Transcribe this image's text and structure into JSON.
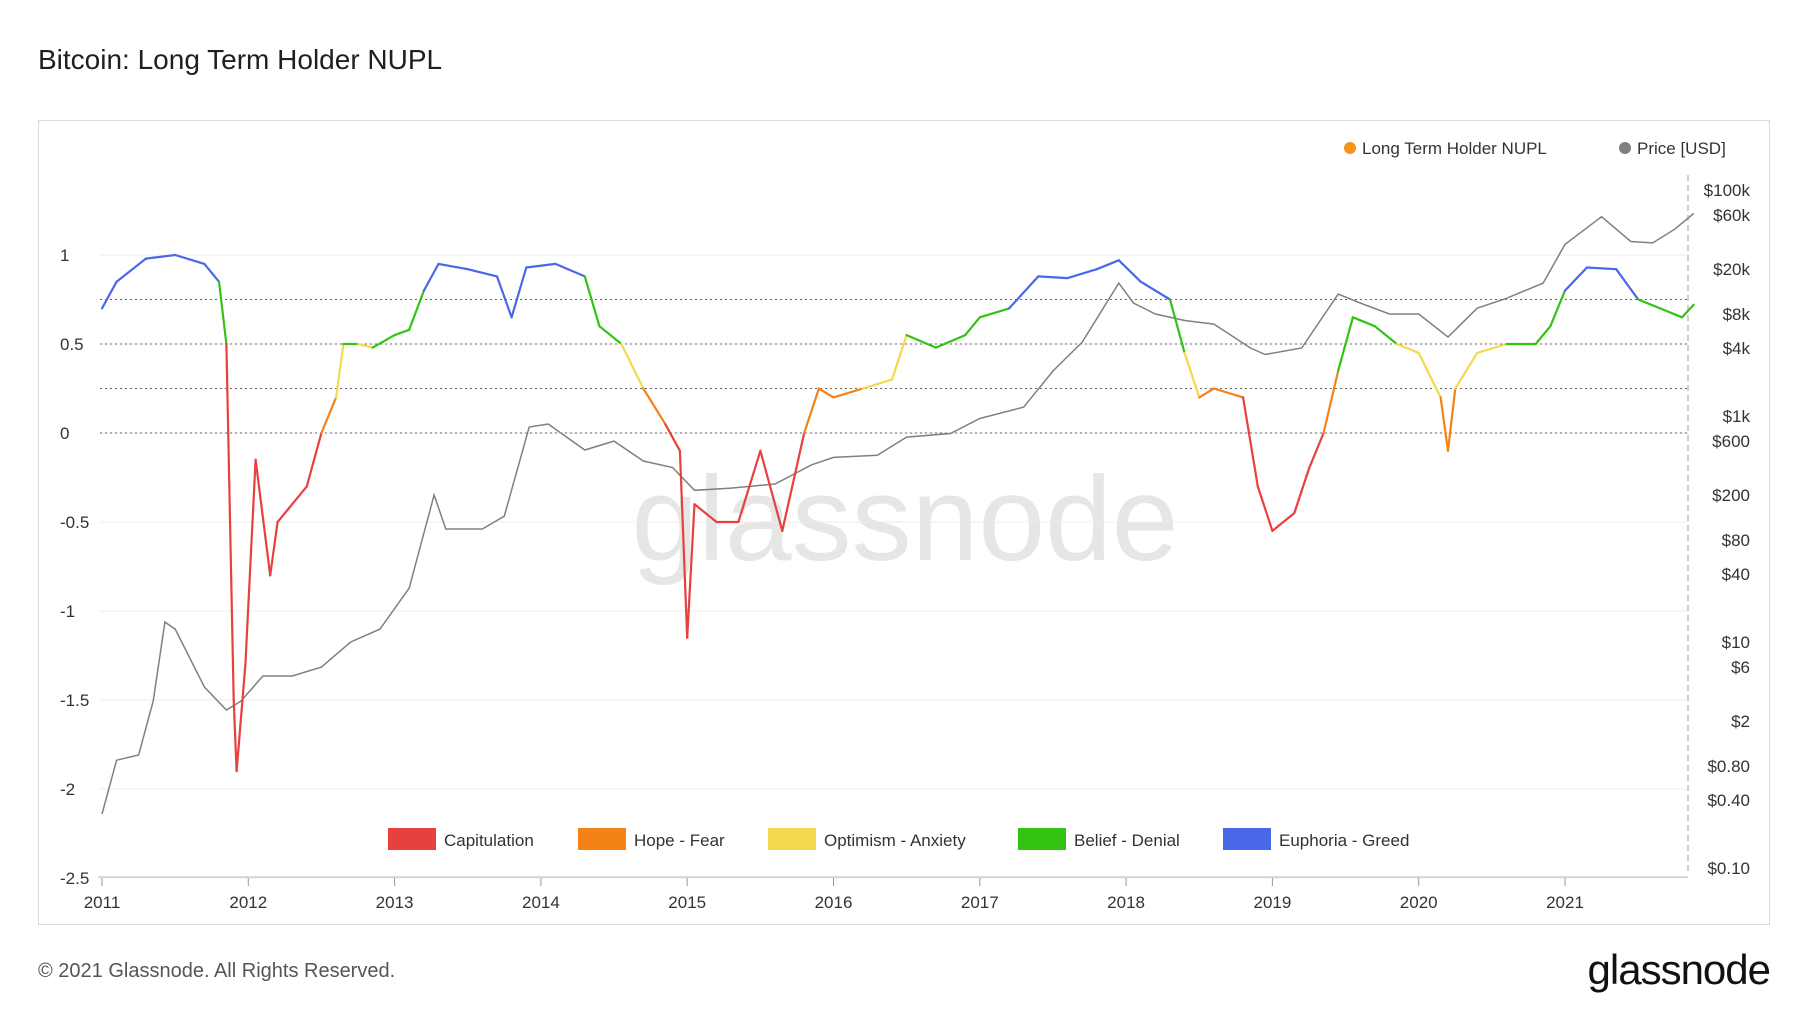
{
  "title": "Bitcoin: Long Term Holder NUPL",
  "footer": "© 2021 Glassnode. All Rights Reserved.",
  "brand": "glassnode",
  "watermark": "glassnode",
  "top_legend": [
    {
      "label": "Long Term Holder NUPL",
      "color": "#f7931a"
    },
    {
      "label": "Price [USD]",
      "color": "#808080"
    }
  ],
  "zone_legend": [
    {
      "label": "Capitulation",
      "color": "#e8403f"
    },
    {
      "label": "Hope - Fear",
      "color": "#f58216"
    },
    {
      "label": "Optimism - Anxiety",
      "color": "#f2d94e"
    },
    {
      "label": "Belief - Denial",
      "color": "#33c313"
    },
    {
      "label": "Euphoria - Greed",
      "color": "#4a67e8"
    }
  ],
  "chart_data": {
    "type": "line",
    "x_ticks": [
      "2011",
      "2012",
      "2013",
      "2014",
      "2015",
      "2016",
      "2017",
      "2018",
      "2019",
      "2020",
      "2021"
    ],
    "left_axis": {
      "ticks": [
        "1",
        "0.5",
        "0",
        "-0.5",
        "-1",
        "-1.5",
        "-2",
        "-2.5"
      ],
      "values": [
        1,
        0.5,
        0,
        -0.5,
        -1,
        -1.5,
        -2,
        -2.5
      ],
      "range": [
        -2.5,
        1.4
      ]
    },
    "right_axis": {
      "scale": "log",
      "ticks": [
        "$100k",
        "$60k",
        "$20k",
        "$8k",
        "$4k",
        "$1k",
        "$600",
        "$200",
        "$80",
        "$40",
        "$10",
        "$6",
        "$2",
        "$0.80",
        "$0.40",
        "$0.10"
      ],
      "values": [
        100000,
        60000,
        20000,
        8000,
        4000,
        1000,
        600,
        200,
        80,
        40,
        10,
        6,
        2,
        0.8,
        0.4,
        0.1
      ],
      "range": [
        0.1,
        100000
      ]
    },
    "zone_lines": [
      0.75,
      0.5,
      0.25,
      0
    ],
    "series": [
      {
        "name": "Long Term Holder NUPL",
        "axis": "left",
        "points": [
          [
            2011.0,
            0.7
          ],
          [
            2011.1,
            0.85
          ],
          [
            2011.3,
            0.98
          ],
          [
            2011.5,
            1.0
          ],
          [
            2011.7,
            0.95
          ],
          [
            2011.8,
            0.85
          ],
          [
            2011.85,
            0.5
          ],
          [
            2011.9,
            -1.5
          ],
          [
            2011.92,
            -1.9
          ],
          [
            2011.98,
            -1.3
          ],
          [
            2012.05,
            -0.15
          ],
          [
            2012.15,
            -0.8
          ],
          [
            2012.2,
            -0.5
          ],
          [
            2012.3,
            -0.4
          ],
          [
            2012.4,
            -0.3
          ],
          [
            2012.5,
            0.0
          ],
          [
            2012.6,
            0.2
          ],
          [
            2012.65,
            0.5
          ],
          [
            2012.75,
            0.5
          ],
          [
            2012.85,
            0.48
          ],
          [
            2013.0,
            0.55
          ],
          [
            2013.1,
            0.58
          ],
          [
            2013.2,
            0.8
          ],
          [
            2013.3,
            0.95
          ],
          [
            2013.5,
            0.92
          ],
          [
            2013.7,
            0.88
          ],
          [
            2013.8,
            0.65
          ],
          [
            2013.9,
            0.93
          ],
          [
            2014.1,
            0.95
          ],
          [
            2014.3,
            0.88
          ],
          [
            2014.4,
            0.6
          ],
          [
            2014.55,
            0.5
          ],
          [
            2014.7,
            0.25
          ],
          [
            2014.85,
            0.05
          ],
          [
            2014.95,
            -0.1
          ],
          [
            2015.0,
            -1.15
          ],
          [
            2015.05,
            -0.4
          ],
          [
            2015.2,
            -0.5
          ],
          [
            2015.35,
            -0.5
          ],
          [
            2015.5,
            -0.1
          ],
          [
            2015.65,
            -0.55
          ],
          [
            2015.8,
            0.0
          ],
          [
            2015.9,
            0.25
          ],
          [
            2016.0,
            0.2
          ],
          [
            2016.2,
            0.25
          ],
          [
            2016.4,
            0.3
          ],
          [
            2016.5,
            0.55
          ],
          [
            2016.7,
            0.48
          ],
          [
            2016.9,
            0.55
          ],
          [
            2017.0,
            0.65
          ],
          [
            2017.2,
            0.7
          ],
          [
            2017.4,
            0.88
          ],
          [
            2017.6,
            0.87
          ],
          [
            2017.8,
            0.92
          ],
          [
            2017.95,
            0.97
          ],
          [
            2018.1,
            0.85
          ],
          [
            2018.3,
            0.75
          ],
          [
            2018.4,
            0.45
          ],
          [
            2018.5,
            0.2
          ],
          [
            2018.6,
            0.25
          ],
          [
            2018.8,
            0.2
          ],
          [
            2018.9,
            -0.3
          ],
          [
            2019.0,
            -0.55
          ],
          [
            2019.15,
            -0.45
          ],
          [
            2019.25,
            -0.2
          ],
          [
            2019.35,
            0.0
          ],
          [
            2019.45,
            0.35
          ],
          [
            2019.55,
            0.65
          ],
          [
            2019.7,
            0.6
          ],
          [
            2019.85,
            0.5
          ],
          [
            2020.0,
            0.45
          ],
          [
            2020.15,
            0.2
          ],
          [
            2020.2,
            -0.1
          ],
          [
            2020.25,
            0.25
          ],
          [
            2020.4,
            0.45
          ],
          [
            2020.6,
            0.5
          ],
          [
            2020.8,
            0.5
          ],
          [
            2020.9,
            0.6
          ],
          [
            2021.0,
            0.8
          ],
          [
            2021.15,
            0.93
          ],
          [
            2021.35,
            0.92
          ],
          [
            2021.5,
            0.75
          ],
          [
            2021.65,
            0.7
          ],
          [
            2021.8,
            0.65
          ],
          [
            2021.88,
            0.72
          ]
        ]
      },
      {
        "name": "Price [USD]",
        "axis": "right",
        "points": [
          [
            2011.0,
            0.3
          ],
          [
            2011.1,
            0.9
          ],
          [
            2011.25,
            1.0
          ],
          [
            2011.35,
            3
          ],
          [
            2011.43,
            15
          ],
          [
            2011.5,
            13
          ],
          [
            2011.7,
            4
          ],
          [
            2011.85,
            2.5
          ],
          [
            2011.95,
            3
          ],
          [
            2012.1,
            5
          ],
          [
            2012.3,
            5
          ],
          [
            2012.5,
            6
          ],
          [
            2012.7,
            10
          ],
          [
            2012.9,
            13
          ],
          [
            2013.1,
            30
          ],
          [
            2013.27,
            200
          ],
          [
            2013.35,
            100
          ],
          [
            2013.6,
            100
          ],
          [
            2013.75,
            130
          ],
          [
            2013.92,
            800
          ],
          [
            2014.05,
            850
          ],
          [
            2014.3,
            500
          ],
          [
            2014.5,
            600
          ],
          [
            2014.7,
            400
          ],
          [
            2014.9,
            350
          ],
          [
            2015.05,
            220
          ],
          [
            2015.3,
            230
          ],
          [
            2015.6,
            250
          ],
          [
            2015.85,
            370
          ],
          [
            2016.0,
            430
          ],
          [
            2016.3,
            450
          ],
          [
            2016.5,
            650
          ],
          [
            2016.8,
            700
          ],
          [
            2017.0,
            950
          ],
          [
            2017.3,
            1200
          ],
          [
            2017.5,
            2500
          ],
          [
            2017.7,
            4500
          ],
          [
            2017.95,
            15000
          ],
          [
            2018.05,
            10000
          ],
          [
            2018.2,
            8000
          ],
          [
            2018.4,
            7000
          ],
          [
            2018.6,
            6500
          ],
          [
            2018.85,
            4000
          ],
          [
            2018.95,
            3500
          ],
          [
            2019.2,
            4000
          ],
          [
            2019.45,
            12000
          ],
          [
            2019.6,
            10000
          ],
          [
            2019.8,
            8000
          ],
          [
            2020.0,
            8000
          ],
          [
            2020.2,
            5000
          ],
          [
            2020.4,
            9000
          ],
          [
            2020.6,
            11000
          ],
          [
            2020.85,
            15000
          ],
          [
            2021.0,
            33000
          ],
          [
            2021.25,
            58000
          ],
          [
            2021.45,
            35000
          ],
          [
            2021.6,
            34000
          ],
          [
            2021.75,
            45000
          ],
          [
            2021.88,
            62000
          ]
        ]
      }
    ],
    "zones": [
      {
        "name": "Capitulation",
        "min": -3,
        "max": 0,
        "color": "#e8403f"
      },
      {
        "name": "Hope - Fear",
        "min": 0,
        "max": 0.25,
        "color": "#f58216"
      },
      {
        "name": "Optimism - Anxiety",
        "min": 0.25,
        "max": 0.5,
        "color": "#f2d94e"
      },
      {
        "name": "Belief - Denial",
        "min": 0.5,
        "max": 0.75,
        "color": "#33c313"
      },
      {
        "name": "Euphoria - Greed",
        "min": 0.75,
        "max": 2,
        "color": "#4a67e8"
      }
    ]
  }
}
